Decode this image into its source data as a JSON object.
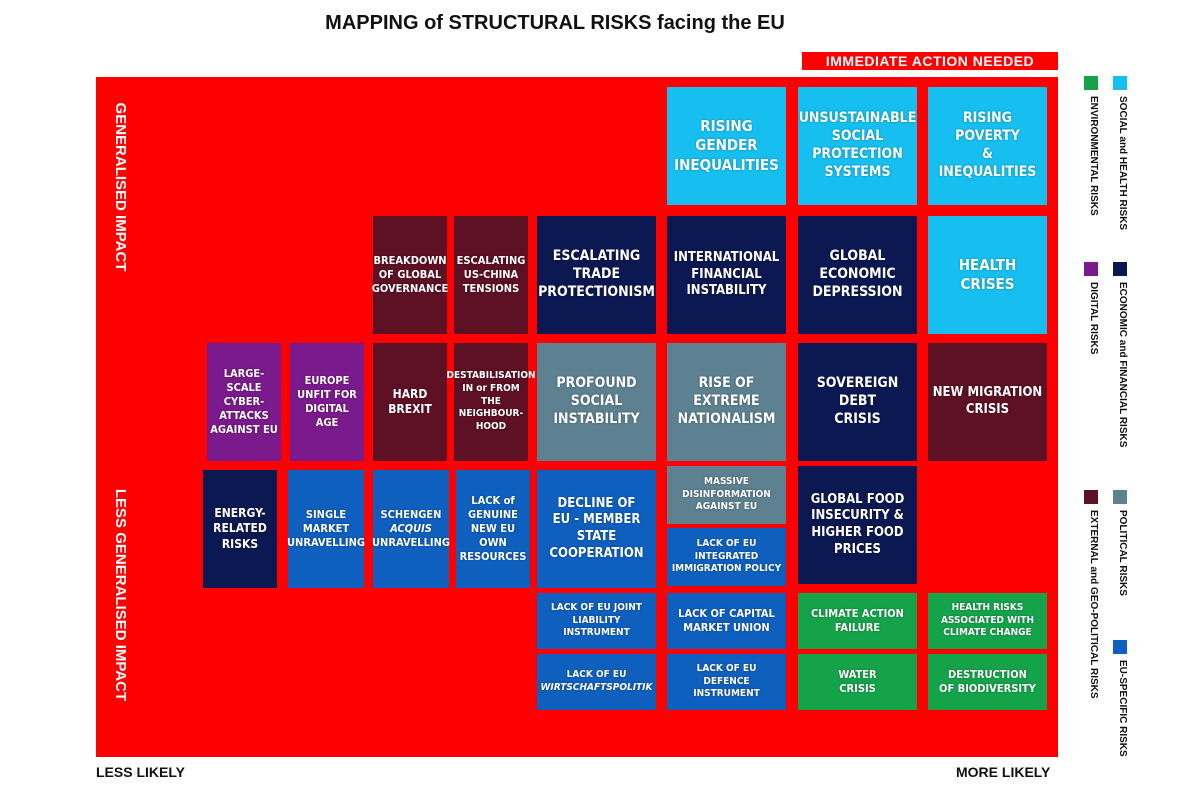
{
  "title": "MAPPING of STRUCTURAL RISKS facing the EU",
  "banner": "IMMEDIATE ACTION NEEDED",
  "impact_labels": {
    "high": "GENERALISED IMPACT",
    "low": "LESS GENERALISED IMPACT"
  },
  "axis": {
    "left": "LESS LIKELY",
    "right": "MORE LIKELY"
  },
  "colors": {
    "board": "#ff0000",
    "social_health": "#16bff0",
    "economic_financial": "#0c1851",
    "digital": "#7a1a8c",
    "external_geopolitical": "#5e1024",
    "political": "#5d8190",
    "environmental": "#15a34a",
    "eu_specific": "#0f5fbf"
  },
  "legend": [
    {
      "label": "SOCIAL and HEALTH RISKS",
      "color": "#16bff0"
    },
    {
      "label": "ENVIRONMENTAL RISKS",
      "color": "#15a34a"
    },
    {
      "label": "ECONOMIC and FINANCIAL RISKS",
      "color": "#0c1851"
    },
    {
      "label": "DIGITAL RISKS",
      "color": "#7a1a8c"
    },
    {
      "label": "POLITICAL RISKS",
      "color": "#5d8190"
    },
    {
      "label": "EXTERNAL and GEO-POLITICAL RISKS",
      "color": "#5e1024"
    },
    {
      "label": "EU-SPECIFIC RISKS",
      "color": "#0f5fbf"
    }
  ],
  "risks": {
    "rising_gender_inequalities": "RISING\nGENDER\nINEQUALITIES",
    "unsustainable_social_protection": "UNSUSTAINABLE\nSOCIAL\nPROTECTION\nSYSTEMS",
    "rising_poverty": "RISING POVERTY\n& INEQUALITIES",
    "breakdown_global_governance": "BREAKDOWN\nOF GLOBAL\nGOVERNANCE",
    "us_china_tensions": "ESCALATING\nUS-CHINA\nTENSIONS",
    "trade_protectionism": "ESCALATING\nTRADE\nPROTECTIONISM",
    "financial_instability": "INTERNATIONAL\nFINANCIAL\nINSTABILITY",
    "economic_depression": "GLOBAL\nECONOMIC\nDEPRESSION",
    "health_crises": "HEALTH\nCRISES",
    "cyber_attacks": "LARGE-SCALE\nCYBER-\nATTACKS\nAGAINST EU",
    "digital_age": "EUROPE\nUNFIT FOR\nDIGITAL AGE",
    "hard_brexit": "HARD\nBREXIT",
    "neighbourhood": "DESTABILISATION\nIN or FROM\nTHE\nNEIGHBOUR-\nHOOD",
    "social_instability": "PROFOUND\nSOCIAL\nINSTABILITY",
    "extreme_nationalism": "RISE OF\nEXTREME\nNATIONALISM",
    "sovereign_debt": "SOVEREIGN\nDEBT\nCRISIS",
    "migration_crisis": "NEW MIGRATION\nCRISIS",
    "energy_risks": "ENERGY-\nRELATED\nRISKS",
    "single_market": "SINGLE\nMARKET\nUNRAVELLING",
    "schengen_1": "SCHENGEN",
    "schengen_2": "ACQUIS",
    "schengen_3": "UNRAVELLING",
    "own_resources": "LACK of\nGENUINE\nNEW EU\nOWN\nRESOURCES",
    "member_state_cooperation": "DECLINE OF\nEU - MEMBER\nSTATE\nCOOPERATION",
    "disinformation": "MASSIVE\nDISINFORMATION\nAGAINST EU",
    "immigration_policy": "LACK OF EU\nINTEGRATED\nIMMIGRATION POLICY",
    "food_insecurity": "GLOBAL FOOD\nINSECURITY &\nHIGHER FOOD\nPRICES",
    "joint_liability": "LACK OF EU JOINT\nLIABILITY\nINSTRUMENT",
    "capital_markets": "LACK OF CAPITAL\nMARKET UNION",
    "climate_action": "CLIMATE ACTION\nFAILURE",
    "climate_health": "HEALTH RISKS\nASSOCIATED WITH\nCLIMATE CHANGE",
    "wirtschaft_1": "LACK OF EU",
    "wirtschaft_2": "WIRTSCHAFTSPOLITIK",
    "defence": "LACK OF EU\nDEFENCE\nINSTRUMENT",
    "water_crisis": "WATER\nCRISIS",
    "biodiversity": "DESTRUCTION\nOF BIODIVERSITY"
  }
}
